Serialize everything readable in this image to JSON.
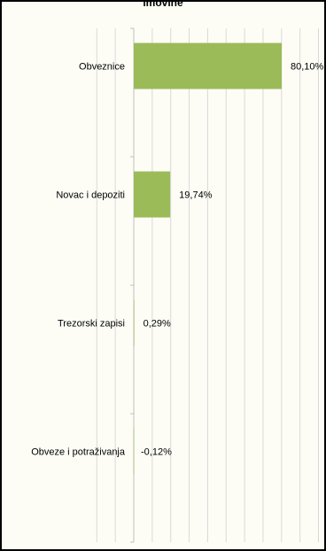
{
  "chart_data": {
    "type": "bar",
    "orientation": "horizontal",
    "title": "imovine",
    "categories": [
      "Obveznice",
      "Novac i depoziti",
      "Trezorski zapisi",
      "Obveze i potraživanja"
    ],
    "values": [
      80.1,
      19.74,
      0.29,
      -0.12
    ],
    "data_labels": [
      "80,10%",
      "19,74%",
      "0,29%",
      "-0,12%"
    ],
    "xlim": [
      -20,
      100
    ],
    "grid": true,
    "bar_color": "#9bbb59"
  }
}
